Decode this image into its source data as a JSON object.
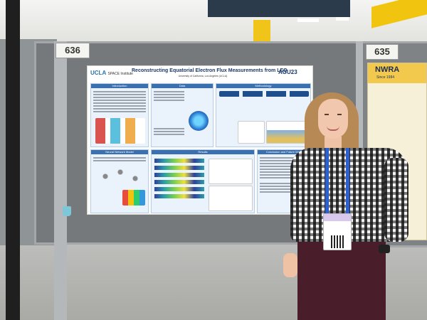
{
  "booths": {
    "left_number": "636",
    "right_number": "635"
  },
  "poster": {
    "institution": "UCLA",
    "institute": "SPACE Institute",
    "title": "Reconstructing Equatorial Electron Flux Measurements from LEO",
    "authors": "University of California, Los Angeles (UCLA)",
    "conference": "AGU23",
    "sections": {
      "intro": "Introduction",
      "data": "Data",
      "methodology": "Methodology",
      "neural_network": "Neural Network Model",
      "results": "Results",
      "conclusion": "Conclusion and Future Work"
    }
  },
  "right_poster": {
    "org": "NWRA",
    "since": "Since 1984"
  },
  "badge": {
    "name": ""
  }
}
